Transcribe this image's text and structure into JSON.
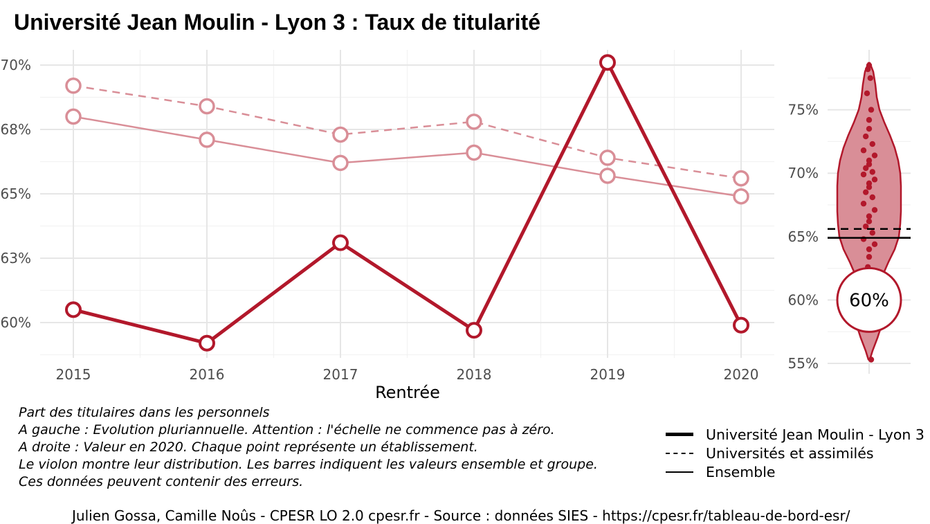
{
  "title": "Université Jean Moulin - Lyon 3  :  Taux de titularité",
  "chart_data": [
    {
      "type": "line",
      "xlabel": "Rentrée",
      "ylabel": "",
      "x": [
        2015,
        2016,
        2017,
        2018,
        2019,
        2020
      ],
      "x_tick_labels": [
        "2015",
        "2016",
        "2017",
        "2018",
        "2019",
        "2020"
      ],
      "y_tick_labels": [
        "60%",
        "63%",
        "65%",
        "68%",
        "70%"
      ],
      "ylim": [
        58.7,
        70.9
      ],
      "grid": true,
      "series": [
        {
          "name": "Université Jean Moulin - Lyon 3",
          "style": "thick",
          "color": "#b2182b",
          "values": [
            60.5,
            59.2,
            63.1,
            59.7,
            70.1,
            59.9
          ]
        },
        {
          "name": "Universités et assimilés",
          "style": "dashed",
          "color": "#d98e97",
          "values": [
            69.2,
            68.4,
            67.3,
            67.8,
            66.4,
            65.6
          ]
        },
        {
          "name": "Ensemble",
          "style": "thin",
          "color": "#d98e97",
          "values": [
            68.0,
            67.1,
            66.2,
            66.6,
            65.7,
            64.9
          ]
        }
      ]
    },
    {
      "type": "violin",
      "year": "2020",
      "y_tick_labels": [
        "55%",
        "60%",
        "65%",
        "70%",
        "75%"
      ],
      "ylim": [
        54.5,
        79.2
      ],
      "highlight_value": 60.0,
      "highlight_label": "60%",
      "ensemble_value": 64.9,
      "group_value": 65.6,
      "points": [
        78.5,
        78.2,
        77.5,
        76.3,
        75.0,
        74.2,
        73.5,
        72.9,
        72.3,
        71.8,
        71.4,
        71.0,
        70.7,
        70.4,
        70.1,
        69.9,
        69.5,
        69.2,
        68.9,
        68.5,
        68.1,
        67.6,
        67.1,
        66.6,
        66.2,
        65.8,
        65.3,
        64.8,
        64.4,
        64.0,
        63.4,
        62.6,
        61.7,
        58.0,
        55.3
      ],
      "color": "#b2182b",
      "fill": "#d98e97"
    }
  ],
  "notes": [
    "Part des titulaires dans les personnels",
    "A gauche : Evolution pluriannuelle. Attention : l'échelle ne commence pas à zéro.",
    "A droite : Valeur en 2020. Chaque point représente un établissement.",
    "Le violon montre leur distribution. Les barres indiquent les valeurs ensemble et groupe.",
    "Ces données peuvent contenir des erreurs."
  ],
  "legend": [
    {
      "label": "Université Jean Moulin - Lyon 3"
    },
    {
      "label": "Universités et assimilés"
    },
    {
      "label": "Ensemble"
    }
  ],
  "caption": "Julien Gossa, Camille Noûs - CPESR LO 2.0 cpesr.fr - Source : données SIES - https://cpesr.fr/tableau-de-bord-esr/"
}
